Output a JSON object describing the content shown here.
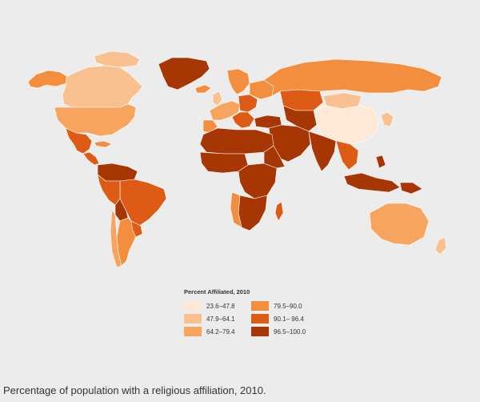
{
  "legend": {
    "title": "Percent Affiliated, 2010",
    "classes": [
      {
        "label": "23.6–47.8",
        "color": "#fde9d6"
      },
      {
        "label": "47.9–64.1",
        "color": "#f9c18f"
      },
      {
        "label": "64.2–79.4",
        "color": "#f6a45e"
      },
      {
        "label": "79.5–90.0",
        "color": "#f28e3e"
      },
      {
        "label": "90.1– 96.4",
        "color": "#dd5b14"
      },
      {
        "label": "96.5–100.0",
        "color": "#a63603"
      }
    ]
  },
  "caption": "Percentage of population with a religious affiliation, 2010.",
  "colors": {
    "background": "#ececec",
    "border": "#ffffff"
  }
}
